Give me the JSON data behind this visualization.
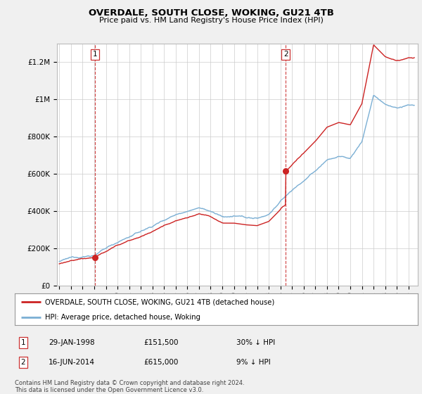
{
  "title": "OVERDALE, SOUTH CLOSE, WOKING, GU21 4TB",
  "subtitle": "Price paid vs. HM Land Registry's House Price Index (HPI)",
  "ytick_labels": [
    "£0",
    "£200K",
    "£400K",
    "£600K",
    "£800K",
    "£1M",
    "£1.2M"
  ],
  "ytick_values": [
    0,
    200,
    400,
    600,
    800,
    1000,
    1200
  ],
  "ylim": [
    0,
    1300
  ],
  "xlim_start": 1994.8,
  "xlim_end": 2025.8,
  "purchase1_date": 1998.08,
  "purchase1_price": 151.5,
  "purchase2_date": 2014.46,
  "purchase2_price": 615.0,
  "hpi_color": "#7bafd4",
  "price_color": "#cc2222",
  "vline_color": "#cc3333",
  "bg_color": "#f0f0f0",
  "plot_bg_color": "#ffffff",
  "legend1_text": "OVERDALE, SOUTH CLOSE, WOKING, GU21 4TB (detached house)",
  "legend2_text": "HPI: Average price, detached house, Woking",
  "table_row1": [
    "1",
    "29-JAN-1998",
    "£151,500",
    "30% ↓ HPI"
  ],
  "table_row2": [
    "2",
    "16-JUN-2014",
    "£615,000",
    "9% ↓ HPI"
  ],
  "footer": "Contains HM Land Registry data © Crown copyright and database right 2024.\nThis data is licensed under the Open Government Licence v3.0."
}
